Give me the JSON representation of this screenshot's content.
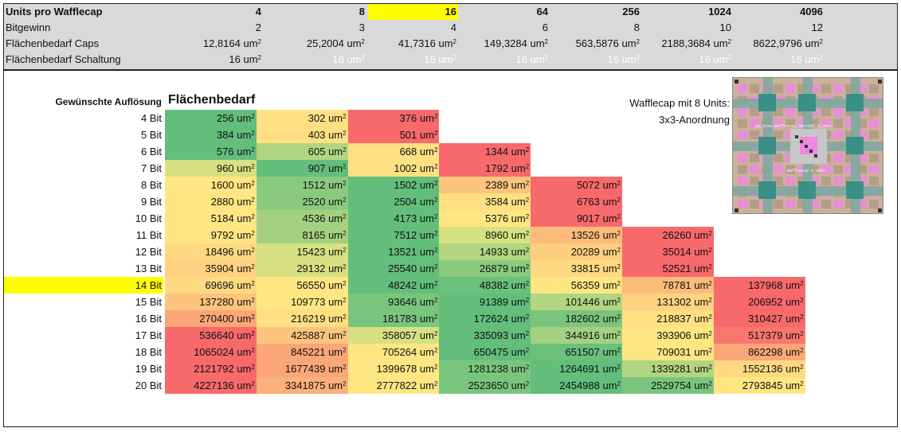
{
  "header": {
    "rows": [
      {
        "label": "Units pro Wafflecap",
        "bold": true,
        "faded": false,
        "values": [
          "4",
          "8",
          "16",
          "64",
          "256",
          "1024",
          "4096"
        ],
        "unit": ""
      },
      {
        "label": "Bitgewinn",
        "bold": false,
        "faded": false,
        "values": [
          "2",
          "3",
          "4",
          "6",
          "8",
          "10",
          "12"
        ],
        "unit": ""
      },
      {
        "label": "Flächenbedarf Caps",
        "bold": false,
        "faded": false,
        "values": [
          "12,8164 um",
          "25,2004 um",
          "41,7316 um",
          "149,3284 um",
          "563,5876 um",
          "2188,3684 um",
          "8622,9796 um"
        ],
        "unit": "2"
      },
      {
        "label": "Flächenbedarf Schaltung",
        "bold": false,
        "faded": true,
        "values": [
          "16 um",
          "16 um",
          "16 um",
          "16 um",
          "16 um",
          "16 um",
          "16 um"
        ],
        "unit": "2"
      }
    ],
    "highlight_column": 2
  },
  "table": {
    "label_desired": "Gewünschte Auflösung",
    "label_area": "Flächenbedarf",
    "highlight_row": 10,
    "rows": [
      {
        "label": "4 Bit",
        "cells": [
          [
            "256 um",
            "#63be7b"
          ],
          [
            "302 um",
            "#fee082"
          ],
          [
            "376 um",
            "#f8696b"
          ]
        ]
      },
      {
        "label": "5 Bit",
        "cells": [
          [
            "384 um",
            "#63be7b"
          ],
          [
            "403 um",
            "#fee082"
          ],
          [
            "501 um",
            "#f8696b"
          ]
        ]
      },
      {
        "label": "6 Bit",
        "cells": [
          [
            "576 um",
            "#63be7b"
          ],
          [
            "605 um",
            "#b1d580"
          ],
          [
            "668 um",
            "#fee082"
          ],
          [
            "1344 um",
            "#f8696b"
          ]
        ]
      },
      {
        "label": "7 Bit",
        "cells": [
          [
            "960 um",
            "#d6e181"
          ],
          [
            "907 um",
            "#63be7b"
          ],
          [
            "1002 um",
            "#fee082"
          ],
          [
            "1792 um",
            "#f8696b"
          ]
        ]
      },
      {
        "label": "8 Bit",
        "cells": [
          [
            "1600 um",
            "#fee683"
          ],
          [
            "1512 um",
            "#8aca7e"
          ],
          [
            "1502 um",
            "#63be7b"
          ],
          [
            "2389 um",
            "#fdc47d"
          ],
          [
            "5072 um",
            "#f8696b"
          ]
        ]
      },
      {
        "label": "9 Bit",
        "cells": [
          [
            "2880 um",
            "#fee683"
          ],
          [
            "2520 um",
            "#8aca7e"
          ],
          [
            "2504 um",
            "#63be7b"
          ],
          [
            "3584 um",
            "#fee082"
          ],
          [
            "6763 um",
            "#f8696b"
          ]
        ]
      },
      {
        "label": "10 Bit",
        "cells": [
          [
            "5184 um",
            "#fee683"
          ],
          [
            "4536 um",
            "#a4d17f"
          ],
          [
            "4173 um",
            "#63be7b"
          ],
          [
            "5376 um",
            "#fee683"
          ],
          [
            "9017 um",
            "#f8696b"
          ]
        ]
      },
      {
        "label": "11 Bit",
        "cells": [
          [
            "9792 um",
            "#fee683"
          ],
          [
            "8165 um",
            "#a4d17f"
          ],
          [
            "7512 um",
            "#63be7b"
          ],
          [
            "8960 um",
            "#d6e181"
          ],
          [
            "13526 um",
            "#fcbb7b"
          ],
          [
            "26260 um",
            "#f8696b"
          ]
        ]
      },
      {
        "label": "12 Bit",
        "cells": [
          [
            "18496 um",
            "#fed981"
          ],
          [
            "15423 um",
            "#d6e181"
          ],
          [
            "13521 um",
            "#63be7b"
          ],
          [
            "14933 um",
            "#b1d580"
          ],
          [
            "20289 um",
            "#fdce7f"
          ],
          [
            "35014 um",
            "#f8696b"
          ]
        ]
      },
      {
        "label": "13 Bit",
        "cells": [
          [
            "35904 um",
            "#fed280"
          ],
          [
            "29132 um",
            "#d6e181"
          ],
          [
            "25540 um",
            "#63be7b"
          ],
          [
            "26879 um",
            "#8aca7e"
          ],
          [
            "33815 um",
            "#fed981"
          ],
          [
            "52521 um",
            "#f8696b"
          ]
        ]
      },
      {
        "label": "14 Bit",
        "cells": [
          [
            "69696 um",
            "#fed981"
          ],
          [
            "56550 um",
            "#fee683"
          ],
          [
            "48242 um",
            "#63be7b"
          ],
          [
            "48382 um",
            "#6bc07c"
          ],
          [
            "56359 um",
            "#fee683"
          ],
          [
            "78781 um",
            "#fcbb7b"
          ],
          [
            "137968 um",
            "#f8696b"
          ]
        ]
      },
      {
        "label": "15 Bit",
        "cells": [
          [
            "137280 um",
            "#fdc47d"
          ],
          [
            "109773 um",
            "#fee683"
          ],
          [
            "93646 um",
            "#7ac57d"
          ],
          [
            "91389 um",
            "#63be7b"
          ],
          [
            "101446 um",
            "#b1d580"
          ],
          [
            "131302 um",
            "#fed280"
          ],
          [
            "206952 um",
            "#f8696b"
          ]
        ]
      },
      {
        "label": "16 Bit",
        "cells": [
          [
            "270400 um",
            "#fba677"
          ],
          [
            "216219 um",
            "#fee082"
          ],
          [
            "181783 um",
            "#7ac57d"
          ],
          [
            "172624 um",
            "#63be7b"
          ],
          [
            "182602 um",
            "#7ac57d"
          ],
          [
            "218837 um",
            "#fee082"
          ],
          [
            "310427 um",
            "#f8696b"
          ]
        ]
      },
      {
        "label": "17 Bit",
        "cells": [
          [
            "536640 um",
            "#f8696b"
          ],
          [
            "425887 um",
            "#fdc47d"
          ],
          [
            "358057 um",
            "#d6e181"
          ],
          [
            "335093 um",
            "#63be7b"
          ],
          [
            "344916 um",
            "#a4d17f"
          ],
          [
            "393906 um",
            "#fee683"
          ],
          [
            "517379 um",
            "#f8766d"
          ]
        ]
      },
      {
        "label": "18 Bit",
        "cells": [
          [
            "1065024 um",
            "#f8696b"
          ],
          [
            "845221 um",
            "#fba677"
          ],
          [
            "705264 um",
            "#fee683"
          ],
          [
            "650475 um",
            "#63be7b"
          ],
          [
            "651507 um",
            "#6bc07c"
          ],
          [
            "709031 um",
            "#fee683"
          ],
          [
            "862298 um",
            "#fba677"
          ]
        ]
      },
      {
        "label": "19 Bit",
        "cells": [
          [
            "2121792 um",
            "#f8696b"
          ],
          [
            "1677439 um",
            "#fba677"
          ],
          [
            "1399678 um",
            "#fee683"
          ],
          [
            "1281238 um",
            "#7ac57d"
          ],
          [
            "1264691 um",
            "#63be7b"
          ],
          [
            "1339281 um",
            "#b1d580"
          ],
          [
            "1552136 um",
            "#fed981"
          ]
        ]
      },
      {
        "label": "20 Bit",
        "cells": [
          [
            "4227136 um",
            "#f8696b"
          ],
          [
            "3341875 um",
            "#fcb07a"
          ],
          [
            "2777822 um",
            "#fee683"
          ],
          [
            "2523650 um",
            "#7ac57d"
          ],
          [
            "2454988 um",
            "#63be7b"
          ],
          [
            "2529754 um",
            "#7ac57d"
          ],
          [
            "2793845 um",
            "#fee683"
          ]
        ]
      }
    ]
  },
  "side_note": {
    "line1": "Wafflecap mit 8 Units:",
    "line2": "3x3-Anordnung"
  },
  "thumbnail": {
    "label_top": "pe_area_wafflecap_8dvt38P_0_unit",
    "label_bottom": "Wafflecap 8 unit",
    "colors": {
      "base": "#cbb19a",
      "grid": "#7fa8a0",
      "pink": "#ee88e0",
      "teal": "#3a8f86",
      "dark": "#2f6f66",
      "gray": "#c7c7c7"
    }
  },
  "colors": {
    "highlight": "#ffff00",
    "band": "#d9d9d9"
  }
}
